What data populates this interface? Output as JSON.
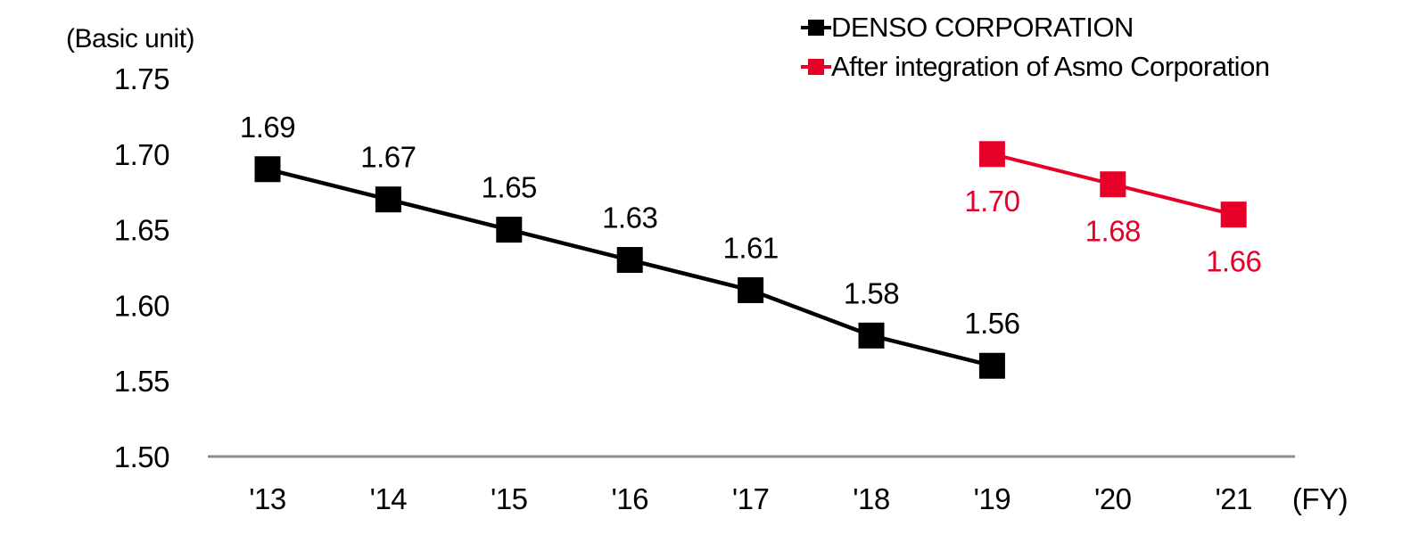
{
  "chart_data": {
    "type": "line",
    "title": "",
    "unit_label": "(Basic unit)",
    "fy_label": "(FY)",
    "categories": [
      "'13",
      "'14",
      "'15",
      "'16",
      "'17",
      "'18",
      "'19",
      "'20",
      "'21"
    ],
    "yticks": [
      1.75,
      1.7,
      1.65,
      1.6,
      1.55,
      1.5
    ],
    "ylim": [
      1.5,
      1.75
    ],
    "grid": false,
    "legend_position": "top-right",
    "axis_color": "#8C8C8C",
    "series": [
      {
        "name": "DENSO CORPORATION",
        "color": "#000000",
        "start_index": 0,
        "values": [
          1.69,
          1.67,
          1.65,
          1.63,
          1.61,
          1.58,
          1.56
        ],
        "label_position": "above"
      },
      {
        "name": "After integration of Asmo Corporation",
        "color": "#E60027",
        "start_index": 6,
        "values": [
          1.7,
          1.68,
          1.66
        ],
        "label_position": "below"
      }
    ]
  }
}
